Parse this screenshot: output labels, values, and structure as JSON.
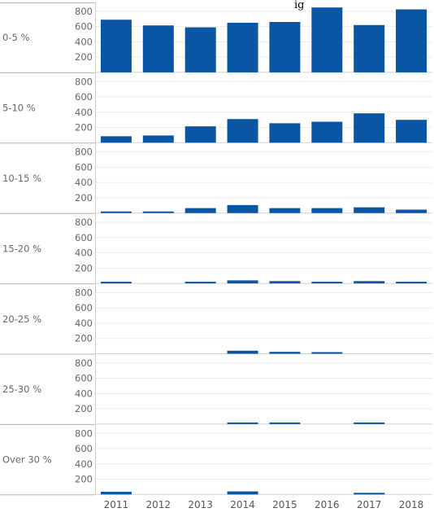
{
  "chart_data": {
    "type": "bar",
    "title": "",
    "visible_title_fragment": "ig",
    "xlabel": "",
    "ylabel": "",
    "categories": [
      "2011",
      "2012",
      "2013",
      "2014",
      "2015",
      "2016",
      "2017",
      "2018"
    ],
    "ylim": [
      0,
      900
    ],
    "yticks": [
      200,
      400,
      600,
      800
    ],
    "grid": true,
    "color": "#0b56a4",
    "panels": [
      {
        "label": "0-5 %",
        "values": [
          690,
          615,
          590,
          650,
          660,
          850,
          620,
          825
        ]
      },
      {
        "label": "5-10 %",
        "values": [
          85,
          95,
          215,
          310,
          255,
          275,
          385,
          300
        ]
      },
      {
        "label": "10-15 %",
        "values": [
          5,
          18,
          65,
          105,
          65,
          65,
          75,
          45
        ]
      },
      {
        "label": "15-20 %",
        "values": [
          3,
          0,
          20,
          40,
          30,
          20,
          30,
          8
        ]
      },
      {
        "label": "20-25 %",
        "values": [
          0,
          0,
          0,
          40,
          25,
          15,
          0,
          0
        ]
      },
      {
        "label": "25-30 %",
        "values": [
          0,
          0,
          0,
          20,
          15,
          0,
          12,
          0
        ]
      },
      {
        "label": "Over 30 %",
        "values": [
          35,
          0,
          0,
          40,
          0,
          0,
          12,
          0
        ]
      }
    ]
  }
}
